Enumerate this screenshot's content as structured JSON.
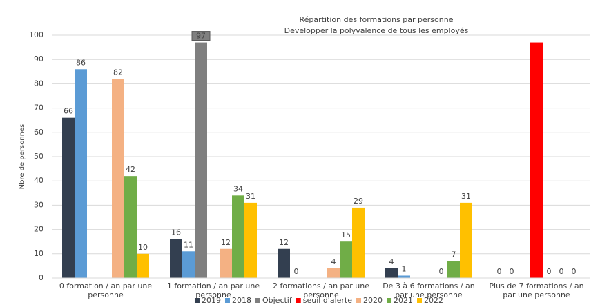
{
  "chart_data": {
    "type": "bar",
    "title": "Répartition des formations par personne",
    "subtitle": "Developper la polyvalence de tous les employés",
    "y_label": "Nbre de personnes",
    "categories": [
      "0 formation / an par une personne",
      "1 formation / an par une personne",
      "2 formations / an par une personne",
      "De 3 à 6 formations / an par une personne",
      "Plus de 7 formations / an par une personne"
    ],
    "series": [
      {
        "name": "2019",
        "color": "#333f50",
        "values": [
          66,
          16,
          12,
          4,
          0
        ]
      },
      {
        "name": "2018",
        "color": "#5b9bd5",
        "values": [
          86,
          11,
          0,
          1,
          0
        ]
      },
      {
        "name": "Objectif",
        "color": "#7f7f7f",
        "values": [
          null,
          97,
          null,
          null,
          null
        ]
      },
      {
        "name": "seuil d'alerte",
        "color": "#ff0000",
        "values": [
          null,
          null,
          null,
          null,
          97
        ],
        "show_labels": false
      },
      {
        "name": "2020",
        "color": "#f4b183",
        "values": [
          82,
          12,
          4,
          0,
          0
        ]
      },
      {
        "name": "2021",
        "color": "#70ad47",
        "values": [
          42,
          34,
          15,
          7,
          0
        ]
      },
      {
        "name": "2022",
        "color": "#ffc000",
        "values": [
          10,
          31,
          29,
          31,
          0
        ]
      }
    ],
    "ylim": [
      0,
      100
    ],
    "yticks": [
      0,
      10,
      20,
      30,
      40,
      50,
      60,
      70,
      80,
      90,
      100
    ],
    "grid": true
  }
}
